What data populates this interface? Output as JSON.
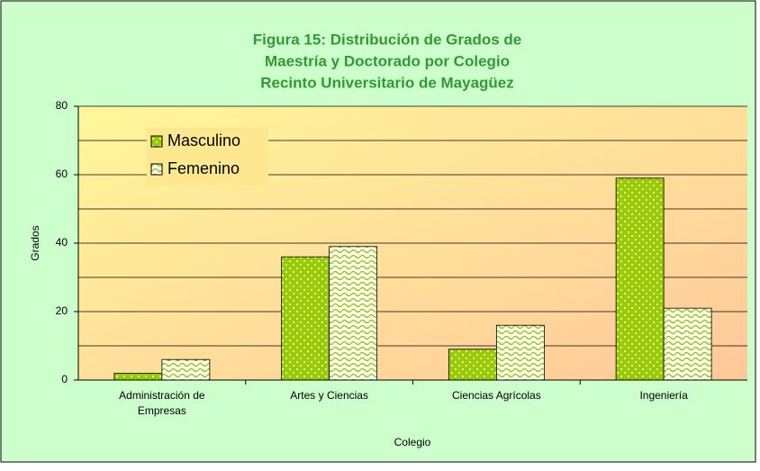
{
  "chart_data": {
    "type": "bar",
    "title": [
      "Figura 15: Distribución de Grados de",
      "Maestría y Doctorado  por Colegio",
      "Recinto Universitario de Mayagüez"
    ],
    "x_label": "Colegio",
    "y_label": "Grados",
    "categories": [
      "Administración de Empresas",
      "Artes y Ciencias",
      "Ciencias Agrícolas",
      "Ingeniería"
    ],
    "series": [
      {
        "name": "Masculino",
        "color": "#99cc00",
        "values": [
          2,
          36,
          9,
          59
        ]
      },
      {
        "name": "Femenino",
        "color": "#99cc00",
        "values": [
          6,
          39,
          16,
          21
        ]
      }
    ],
    "ylim": [
      0,
      80
    ],
    "yticks": [
      0,
      20,
      40,
      60,
      80
    ],
    "minor_gridlines": [
      10,
      30,
      50,
      70
    ],
    "grid": true
  }
}
